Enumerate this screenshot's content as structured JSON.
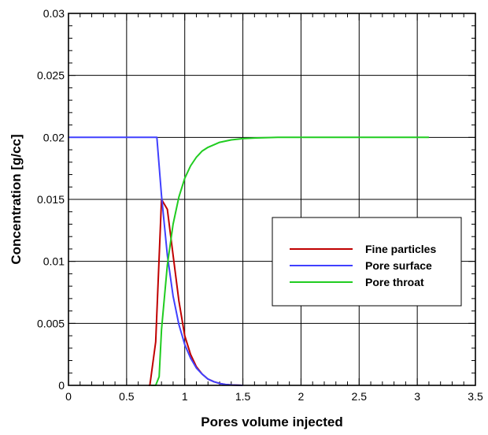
{
  "chart_data": {
    "type": "line",
    "title": "",
    "xlabel": "Pores volume injected",
    "ylabel": "Concentration [g/cc]",
    "xlim": [
      0,
      3.5
    ],
    "ylim": [
      0,
      0.03
    ],
    "grid": true,
    "legend_position": "center-right",
    "x_ticks": [
      0,
      0.5,
      1,
      1.5,
      2,
      2.5,
      3,
      3.5
    ],
    "x_tick_labels": [
      "0",
      "0.5",
      "1",
      "1.5",
      "2",
      "2.5",
      "3",
      "3.5"
    ],
    "y_ticks": [
      0,
      0.005,
      0.01,
      0.015,
      0.02,
      0.025,
      0.03
    ],
    "y_tick_labels": [
      "0",
      "0.005",
      "0.01",
      "0.015",
      "0.02",
      "0.025",
      "0.03"
    ],
    "series": [
      {
        "name": "Fine particles",
        "color": "#c00000",
        "x": [
          0.69,
          0.7,
          0.75,
          0.8,
          0.85,
          0.9,
          0.95,
          1.0,
          1.05,
          1.1,
          1.15,
          1.2,
          1.25,
          1.3,
          1.35,
          1.4,
          1.45,
          1.5
        ],
        "y": [
          0,
          0,
          0.0035,
          0.015,
          0.0142,
          0.0105,
          0.0068,
          0.004,
          0.0025,
          0.0015,
          0.0009,
          0.0005,
          0.0003,
          0.00015,
          7e-05,
          3e-05,
          1e-05,
          0
        ]
      },
      {
        "name": "Pore surface",
        "color": "#4040ff",
        "x": [
          0,
          0.76,
          0.8,
          0.85,
          0.9,
          0.95,
          1.0,
          1.05,
          1.1,
          1.15,
          1.2,
          1.25,
          1.3,
          1.35,
          1.4,
          1.45,
          1.5
        ],
        "y": [
          0.02,
          0.02,
          0.0153,
          0.0105,
          0.0072,
          0.0049,
          0.0033,
          0.0022,
          0.0014,
          0.0009,
          0.0005,
          0.0003,
          0.00015,
          7e-05,
          3e-05,
          1e-05,
          0
        ]
      },
      {
        "name": "Pore throat",
        "color": "#20cc20",
        "x": [
          0.71,
          0.75,
          0.78,
          0.8,
          0.85,
          0.9,
          0.95,
          1.0,
          1.05,
          1.1,
          1.15,
          1.2,
          1.25,
          1.3,
          1.4,
          1.5,
          1.6,
          1.8,
          2.0,
          2.5,
          3.0,
          3.1
        ],
        "y": [
          0,
          0,
          0.0007,
          0.0045,
          0.0097,
          0.013,
          0.0152,
          0.0167,
          0.0177,
          0.0184,
          0.0189,
          0.0192,
          0.0194,
          0.0196,
          0.0198,
          0.0199,
          0.01995,
          0.02,
          0.02,
          0.02,
          0.02,
          0.02
        ]
      }
    ]
  }
}
